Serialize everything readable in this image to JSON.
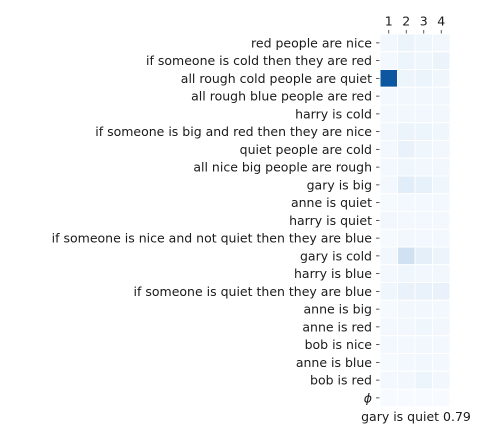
{
  "chart_data": {
    "type": "heatmap",
    "columns": [
      "1",
      "2",
      "3",
      "4"
    ],
    "rows": [
      "red people are nice",
      "if someone is cold then they are red",
      "all rough cold people are quiet",
      "all rough blue people are red",
      "harry is cold",
      "if someone is big and red then they are nice",
      "quiet people are cold",
      "all nice big people are rough",
      "gary is big",
      "anne is quiet",
      "harry is quiet",
      "if someone is nice and not quiet then they are blue",
      "gary is cold",
      "harry is blue",
      "if someone is quiet then they are blue",
      "anne is big",
      "anne is red",
      "bob is nice",
      "anne is blue",
      "bob is red",
      "ϕ"
    ],
    "values": [
      [
        0.03,
        0.06,
        0.04,
        0.03
      ],
      [
        0.02,
        0.05,
        0.04,
        0.06
      ],
      [
        0.85,
        0.05,
        0.06,
        0.04
      ],
      [
        0.02,
        0.03,
        0.03,
        0.03
      ],
      [
        0.02,
        0.03,
        0.03,
        0.03
      ],
      [
        0.03,
        0.06,
        0.05,
        0.04
      ],
      [
        0.02,
        0.07,
        0.04,
        0.03
      ],
      [
        0.02,
        0.04,
        0.03,
        0.03
      ],
      [
        0.02,
        0.11,
        0.08,
        0.04
      ],
      [
        0.01,
        0.02,
        0.02,
        0.02
      ],
      [
        0.03,
        0.02,
        0.02,
        0.02
      ],
      [
        0.01,
        0.03,
        0.02,
        0.02
      ],
      [
        0.03,
        0.2,
        0.09,
        0.05
      ],
      [
        0.02,
        0.04,
        0.03,
        0.03
      ],
      [
        0.04,
        0.07,
        0.07,
        0.07
      ],
      [
        0.01,
        0.03,
        0.03,
        0.02
      ],
      [
        0.02,
        0.03,
        0.04,
        0.03
      ],
      [
        0.02,
        0.02,
        0.03,
        0.02
      ],
      [
        0.01,
        0.02,
        0.03,
        0.02
      ],
      [
        0.02,
        0.03,
        0.05,
        0.03
      ],
      [
        0.0,
        0.0,
        0.0,
        0.0
      ]
    ],
    "vmin": 0,
    "vmax": 1,
    "colormap": [
      "#f7fbff",
      "#deebf7",
      "#c6dbef",
      "#9ecae1",
      "#6baed6",
      "#4292c6",
      "#2171b5",
      "#08519c",
      "#08306b"
    ],
    "xlabel": "gary is quiet 0.79",
    "ylabel": "",
    "title": "",
    "x_ticks_position": "top",
    "grid": false
  }
}
